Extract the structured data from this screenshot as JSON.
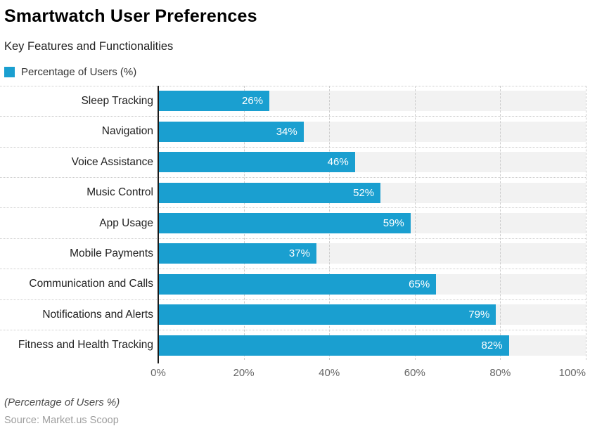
{
  "header": {
    "title": "Smartwatch User Preferences",
    "subtitle": "Key Features and Functionalities"
  },
  "legend": {
    "label": "Percentage of Users (%)",
    "swatch_color": "#1A9FD0"
  },
  "chart_data": {
    "type": "bar",
    "orientation": "horizontal",
    "title": "Smartwatch User Preferences",
    "subtitle": "Key Features and Functionalities",
    "series_name": "Percentage of Users (%)",
    "categories": [
      "Sleep Tracking",
      "Navigation",
      "Voice Assistance",
      "Music Control",
      "App Usage",
      "Mobile Payments",
      "Communication and Calls",
      "Notifications and Alerts",
      "Fitness and Health Tracking"
    ],
    "values": [
      26,
      34,
      46,
      52,
      59,
      37,
      65,
      79,
      82
    ],
    "value_labels": [
      "26%",
      "34%",
      "46%",
      "52%",
      "59%",
      "37%",
      "65%",
      "79%",
      "82%"
    ],
    "xlim": [
      0,
      100
    ],
    "x_ticks": [
      "0%",
      "20%",
      "40%",
      "60%",
      "80%",
      "100%"
    ],
    "x_tick_values": [
      0,
      20,
      40,
      60,
      80,
      100
    ],
    "grid": true,
    "legend_position": "top-left",
    "bar_color": "#1A9FD0",
    "track_color": "#F2F2F2",
    "gridline_color": "#CCCCCC",
    "axis_line_color": "#1A1A1A"
  },
  "footer": {
    "note": "(Percentage of Users %)",
    "source": "Source: Market.us Scoop"
  }
}
